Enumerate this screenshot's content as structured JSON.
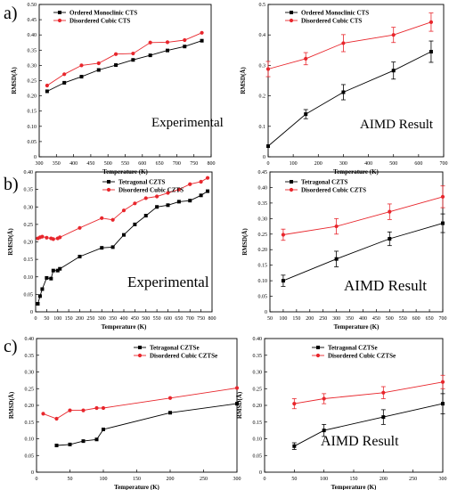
{
  "panel_labels": [
    "a)",
    "b)",
    "c)"
  ],
  "chart_data": [
    {
      "type": "line",
      "xlabel": "Temperature (K)",
      "ylabel": "RMSD(Å)",
      "xlim": [
        300,
        800
      ],
      "ylim": [
        0,
        0.5
      ],
      "xticks": [
        300,
        350,
        400,
        450,
        500,
        550,
        600,
        650,
        700,
        750,
        800
      ],
      "yticks": [
        0,
        0.05,
        0.1,
        0.15,
        0.2,
        0.25,
        0.3,
        0.35,
        0.4,
        0.45,
        0.5
      ],
      "legend_position": "top-left",
      "annotation": "Experimental",
      "series": [
        {
          "name": "Ordered Monoclinic CTS",
          "color": "#000000",
          "marker": "square",
          "x": [
            323,
            373,
            423,
            473,
            523,
            573,
            623,
            673,
            723,
            773
          ],
          "y": [
            0.215,
            0.243,
            0.263,
            0.285,
            0.301,
            0.318,
            0.333,
            0.349,
            0.362,
            0.381
          ]
        },
        {
          "name": "Disordered Cubic CTS",
          "color": "#e8262c",
          "marker": "circle",
          "x": [
            323,
            373,
            423,
            473,
            523,
            573,
            623,
            673,
            723,
            773
          ],
          "y": [
            0.234,
            0.271,
            0.3,
            0.307,
            0.337,
            0.339,
            0.375,
            0.376,
            0.383,
            0.407
          ]
        }
      ]
    },
    {
      "type": "line",
      "xlabel": "Temperature (K)",
      "ylabel": "RMSD(Å)",
      "xlim": [
        0,
        700
      ],
      "ylim": [
        0,
        0.5
      ],
      "xticks": [
        0,
        100,
        200,
        300,
        400,
        500,
        600,
        700
      ],
      "yticks": [
        0,
        0.1,
        0.2,
        0.3,
        0.4,
        0.5
      ],
      "legend_position": "top-left",
      "annotation": "AIMD Result",
      "series": [
        {
          "name": "Ordered  Monoclinic CTS",
          "color": "#000000",
          "marker": "square",
          "x": [
            0,
            150,
            300,
            500,
            650
          ],
          "y": [
            0.035,
            0.14,
            0.212,
            0.283,
            0.345
          ],
          "err": [
            0.0,
            0.015,
            0.025,
            0.028,
            0.035
          ]
        },
        {
          "name": "Disordered Cubic CTS",
          "color": "#e8262c",
          "marker": "circle",
          "x": [
            0,
            150,
            300,
            500,
            650
          ],
          "y": [
            0.288,
            0.322,
            0.373,
            0.4,
            0.442
          ],
          "err": [
            0.025,
            0.02,
            0.028,
            0.025,
            0.03
          ]
        }
      ]
    },
    {
      "type": "line",
      "xlabel": "Temperature (K)",
      "ylabel": "RMSD(Å)",
      "xlim": [
        0,
        800
      ],
      "ylim": [
        0,
        0.4
      ],
      "xticks": [
        0,
        50,
        100,
        150,
        200,
        250,
        300,
        350,
        400,
        450,
        500,
        550,
        600,
        650,
        700,
        750,
        800
      ],
      "yticks": [
        0,
        0.05,
        0.1,
        0.15,
        0.2,
        0.25,
        0.3,
        0.35,
        0.4
      ],
      "legend_position": "top-left",
      "annotation": "Experimental",
      "series": [
        {
          "name": "Tetragonal CZTS",
          "color": "#000000",
          "marker": "square",
          "x": [
            10,
            20,
            30,
            50,
            70,
            80,
            100,
            110,
            200,
            300,
            350,
            400,
            450,
            500,
            550,
            600,
            650,
            700,
            750,
            780
          ],
          "y": [
            0.023,
            0.045,
            0.065,
            0.097,
            0.095,
            0.118,
            0.118,
            0.123,
            0.158,
            0.183,
            0.185,
            0.22,
            0.25,
            0.275,
            0.3,
            0.305,
            0.315,
            0.318,
            0.333,
            0.345
          ]
        },
        {
          "name": "Disordered Cubic CZTS",
          "color": "#e8262c",
          "marker": "circle",
          "x": [
            10,
            20,
            30,
            50,
            70,
            80,
            100,
            110,
            200,
            300,
            350,
            400,
            450,
            500,
            550,
            600,
            650,
            700,
            750,
            780
          ],
          "y": [
            0.21,
            0.213,
            0.215,
            0.212,
            0.21,
            0.208,
            0.21,
            0.213,
            0.24,
            0.268,
            0.263,
            0.29,
            0.31,
            0.325,
            0.33,
            0.34,
            0.35,
            0.365,
            0.372,
            0.383
          ]
        }
      ]
    },
    {
      "type": "line",
      "xlabel": "Temperature (K)",
      "ylabel": "RMSD(Å)",
      "xlim": [
        50,
        700
      ],
      "ylim": [
        0,
        0.45
      ],
      "xticks": [
        50,
        100,
        150,
        200,
        250,
        300,
        350,
        400,
        450,
        500,
        550,
        600,
        650,
        700
      ],
      "yticks": [
        0,
        0.05,
        0.1,
        0.15,
        0.2,
        0.25,
        0.3,
        0.35,
        0.4,
        0.45
      ],
      "legend_position": "top-left",
      "annotation": "AIMD Result",
      "series": [
        {
          "name": "Tetragonal CZTS",
          "color": "#000000",
          "marker": "square",
          "x": [
            100,
            300,
            500,
            700
          ],
          "y": [
            0.1,
            0.17,
            0.235,
            0.285
          ],
          "err": [
            0.018,
            0.025,
            0.022,
            0.03
          ]
        },
        {
          "name": "Disordered Cubic CZTS",
          "color": "#e8262c",
          "marker": "circle",
          "x": [
            100,
            300,
            500,
            700
          ],
          "y": [
            0.248,
            0.275,
            0.322,
            0.37
          ],
          "err": [
            0.018,
            0.025,
            0.025,
            0.035
          ]
        }
      ]
    },
    {
      "type": "line",
      "xlabel": "Temperature (K)",
      "ylabel": "RMSD(Å)",
      "xlim": [
        0,
        300
      ],
      "ylim": [
        0,
        0.4
      ],
      "xticks": [
        0,
        50,
        100,
        150,
        200,
        250,
        300
      ],
      "yticks": [
        0,
        0.05,
        0.1,
        0.15,
        0.2,
        0.25,
        0.3,
        0.35,
        0.4
      ],
      "legend_position": "top-right",
      "series": [
        {
          "name": "Tetragonal CZTSe",
          "color": "#000000",
          "marker": "square",
          "x": [
            30,
            50,
            70,
            90,
            100,
            200,
            300
          ],
          "y": [
            0.08,
            0.083,
            0.093,
            0.098,
            0.128,
            0.178,
            0.205
          ]
        },
        {
          "name": "Disordered Cubic CZTSe",
          "color": "#e8262c",
          "marker": "circle",
          "x": [
            10,
            30,
            50,
            70,
            90,
            100,
            200,
            300
          ],
          "y": [
            0.175,
            0.16,
            0.185,
            0.185,
            0.192,
            0.192,
            0.222,
            0.252
          ]
        }
      ]
    },
    {
      "type": "line",
      "xlabel": "Temperature (K)",
      "ylabel": "RMSD(Å)",
      "xlim": [
        0,
        300
      ],
      "ylim": [
        0,
        0.4
      ],
      "xticks": [
        0,
        50,
        100,
        150,
        200,
        250,
        300
      ],
      "yticks": [
        0,
        0.05,
        0.1,
        0.15,
        0.2,
        0.25,
        0.3,
        0.35,
        0.4
      ],
      "legend_position": "top-right",
      "annotation": "AIMD Result",
      "series": [
        {
          "name": "Tetragonal CZTSe",
          "color": "#000000",
          "marker": "square",
          "x": [
            50,
            100,
            200,
            300
          ],
          "y": [
            0.078,
            0.125,
            0.165,
            0.205
          ],
          "err": [
            0.01,
            0.018,
            0.022,
            0.03
          ]
        },
        {
          "name": "Disordered Cubic CZTSe",
          "color": "#e8262c",
          "marker": "circle",
          "x": [
            50,
            100,
            200,
            300
          ],
          "y": [
            0.205,
            0.22,
            0.238,
            0.27
          ],
          "err": [
            0.015,
            0.015,
            0.018,
            0.02
          ]
        }
      ]
    }
  ]
}
